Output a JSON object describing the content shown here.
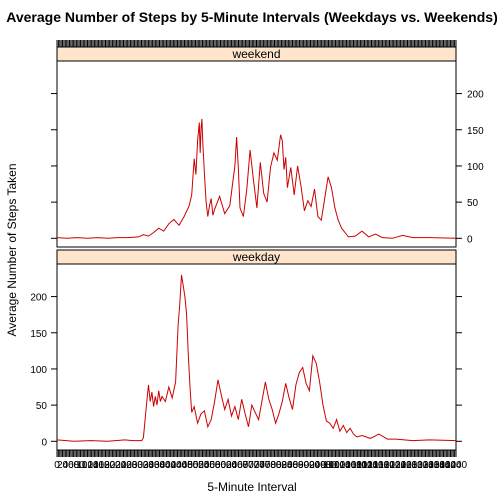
{
  "chart_data": {
    "type": "line",
    "title": "Average Number of Steps by 5-Minute Intervals (Weekdays vs. Weekends)",
    "xlabel": "5-Minute Interval",
    "ylabel": "Average Number of Steps Taken",
    "x_range": [
      0,
      2355
    ],
    "ylim": [
      -12,
      245
    ],
    "y_ticks": [
      0,
      50,
      100,
      150,
      200
    ],
    "x_tick_labels_hint": "overlapping interval labels (0, 5, 10, ... 2355)",
    "line_color": "#cc0000",
    "strip_color": "#ffe5cc",
    "panels": [
      {
        "label": "weekend",
        "y_axis_side": "right",
        "points": [
          [
            0,
            1
          ],
          [
            60,
            0
          ],
          [
            120,
            1
          ],
          [
            180,
            0
          ],
          [
            240,
            1
          ],
          [
            300,
            0
          ],
          [
            360,
            1
          ],
          [
            420,
            1
          ],
          [
            480,
            2
          ],
          [
            510,
            5
          ],
          [
            540,
            3
          ],
          [
            570,
            8
          ],
          [
            600,
            14
          ],
          [
            630,
            10
          ],
          [
            660,
            20
          ],
          [
            690,
            26
          ],
          [
            720,
            18
          ],
          [
            750,
            30
          ],
          [
            780,
            45
          ],
          [
            795,
            60
          ],
          [
            810,
            110
          ],
          [
            820,
            88
          ],
          [
            830,
            135
          ],
          [
            840,
            160
          ],
          [
            845,
            118
          ],
          [
            850,
            150
          ],
          [
            855,
            165
          ],
          [
            860,
            135
          ],
          [
            870,
            90
          ],
          [
            880,
            50
          ],
          [
            890,
            30
          ],
          [
            900,
            45
          ],
          [
            910,
            55
          ],
          [
            920,
            32
          ],
          [
            930,
            40
          ],
          [
            960,
            58
          ],
          [
            990,
            34
          ],
          [
            1020,
            45
          ],
          [
            1040,
            82
          ],
          [
            1050,
            100
          ],
          [
            1060,
            140
          ],
          [
            1070,
            98
          ],
          [
            1080,
            42
          ],
          [
            1100,
            30
          ],
          [
            1120,
            68
          ],
          [
            1140,
            122
          ],
          [
            1160,
            80
          ],
          [
            1180,
            42
          ],
          [
            1200,
            105
          ],
          [
            1220,
            62
          ],
          [
            1240,
            50
          ],
          [
            1260,
            98
          ],
          [
            1280,
            118
          ],
          [
            1300,
            108
          ],
          [
            1320,
            143
          ],
          [
            1330,
            135
          ],
          [
            1340,
            95
          ],
          [
            1350,
            112
          ],
          [
            1360,
            70
          ],
          [
            1380,
            98
          ],
          [
            1400,
            60
          ],
          [
            1420,
            100
          ],
          [
            1440,
            72
          ],
          [
            1460,
            38
          ],
          [
            1480,
            52
          ],
          [
            1500,
            44
          ],
          [
            1520,
            68
          ],
          [
            1540,
            30
          ],
          [
            1560,
            25
          ],
          [
            1580,
            55
          ],
          [
            1600,
            85
          ],
          [
            1620,
            70
          ],
          [
            1640,
            42
          ],
          [
            1660,
            25
          ],
          [
            1680,
            14
          ],
          [
            1700,
            8
          ],
          [
            1720,
            2
          ],
          [
            1760,
            3
          ],
          [
            1800,
            10
          ],
          [
            1840,
            2
          ],
          [
            1880,
            6
          ],
          [
            1920,
            1
          ],
          [
            1980,
            0
          ],
          [
            2040,
            4
          ],
          [
            2100,
            1
          ],
          [
            2200,
            1
          ],
          [
            2355,
            0
          ]
        ]
      },
      {
        "label": "weekday",
        "y_axis_side": "left",
        "points": [
          [
            0,
            2
          ],
          [
            100,
            0
          ],
          [
            200,
            1
          ],
          [
            300,
            0
          ],
          [
            400,
            2
          ],
          [
            450,
            1
          ],
          [
            500,
            1
          ],
          [
            510,
            5
          ],
          [
            520,
            30
          ],
          [
            530,
            55
          ],
          [
            540,
            78
          ],
          [
            550,
            55
          ],
          [
            560,
            68
          ],
          [
            570,
            48
          ],
          [
            580,
            62
          ],
          [
            590,
            50
          ],
          [
            600,
            70
          ],
          [
            610,
            55
          ],
          [
            620,
            62
          ],
          [
            640,
            55
          ],
          [
            660,
            75
          ],
          [
            680,
            60
          ],
          [
            700,
            82
          ],
          [
            715,
            160
          ],
          [
            725,
            190
          ],
          [
            735,
            230
          ],
          [
            745,
            215
          ],
          [
            755,
            200
          ],
          [
            765,
            175
          ],
          [
            775,
            120
          ],
          [
            785,
            75
          ],
          [
            795,
            40
          ],
          [
            810,
            48
          ],
          [
            830,
            25
          ],
          [
            850,
            38
          ],
          [
            870,
            42
          ],
          [
            890,
            20
          ],
          [
            910,
            30
          ],
          [
            930,
            55
          ],
          [
            950,
            85
          ],
          [
            970,
            64
          ],
          [
            990,
            44
          ],
          [
            1010,
            58
          ],
          [
            1030,
            35
          ],
          [
            1050,
            48
          ],
          [
            1070,
            30
          ],
          [
            1090,
            58
          ],
          [
            1110,
            38
          ],
          [
            1130,
            20
          ],
          [
            1150,
            50
          ],
          [
            1170,
            40
          ],
          [
            1190,
            30
          ],
          [
            1210,
            56
          ],
          [
            1230,
            82
          ],
          [
            1250,
            58
          ],
          [
            1270,
            44
          ],
          [
            1290,
            25
          ],
          [
            1310,
            38
          ],
          [
            1330,
            55
          ],
          [
            1350,
            80
          ],
          [
            1370,
            60
          ],
          [
            1390,
            44
          ],
          [
            1410,
            78
          ],
          [
            1430,
            95
          ],
          [
            1450,
            102
          ],
          [
            1470,
            80
          ],
          [
            1490,
            70
          ],
          [
            1510,
            118
          ],
          [
            1530,
            108
          ],
          [
            1550,
            82
          ],
          [
            1570,
            50
          ],
          [
            1590,
            28
          ],
          [
            1610,
            25
          ],
          [
            1630,
            18
          ],
          [
            1650,
            30
          ],
          [
            1670,
            14
          ],
          [
            1690,
            22
          ],
          [
            1710,
            12
          ],
          [
            1730,
            18
          ],
          [
            1750,
            10
          ],
          [
            1770,
            6
          ],
          [
            1800,
            8
          ],
          [
            1850,
            4
          ],
          [
            1900,
            10
          ],
          [
            1950,
            3
          ],
          [
            2000,
            3
          ],
          [
            2100,
            1
          ],
          [
            2200,
            2
          ],
          [
            2355,
            1
          ]
        ]
      }
    ]
  }
}
